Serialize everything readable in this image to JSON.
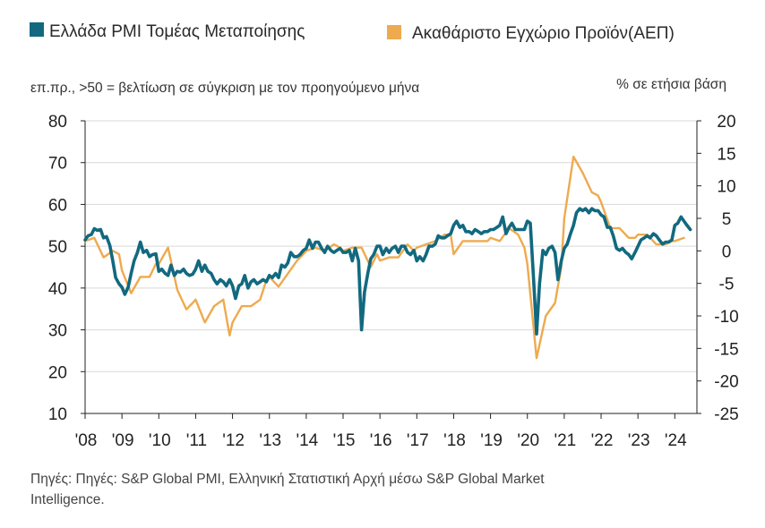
{
  "legend": {
    "pmi_label": "Ελλάδα PMI Τομέας Μεταποίησης",
    "gdp_label": "Ακαθάριστο Εγχώριο Προϊόν(ΑΕΠ)"
  },
  "subtitle_left": "επ.πρ., >50 = βελτίωση σε σύγκριση με τον προηγούμενο μήνα",
  "subtitle_right": "% σε ετήσια βάση",
  "source_line1": "Πηγές: Πηγές: S&P Global PMI, Ελληνική Στατιστική Αρχή μέσω S&P Global Market",
  "source_line2": "Intelligence.",
  "colors": {
    "pmi": "#12697f",
    "gdp": "#eeaa4e",
    "grid": "#d9d9d9",
    "axis": "#222222"
  },
  "chart_data": {
    "type": "line",
    "x_tick_labels": [
      "'08",
      "'09",
      "'10",
      "'11",
      "'12",
      "'13",
      "'14",
      "'15",
      "'16",
      "'17",
      "'18",
      "'19",
      "'20",
      "'21",
      "'22",
      "'23",
      "'24"
    ],
    "x_range": [
      2008.0,
      2024.6
    ],
    "left_axis": {
      "ylim": [
        10,
        80
      ],
      "ticks": [
        "80",
        "70",
        "60",
        "50",
        "40",
        "30",
        "20",
        "10"
      ]
    },
    "right_axis": {
      "ylim": [
        -25,
        20
      ],
      "ticks": [
        "20",
        "15",
        "10",
        "5",
        "0",
        "-5",
        "-10",
        "-15",
        "-20",
        "-25"
      ]
    },
    "grid": "horizontal",
    "legend_position": "top",
    "series": [
      {
        "name": "Ελλάδα PMI Τομέας Μεταποίησης",
        "axis": "left",
        "color": "#12697f",
        "points": [
          [
            2008.0,
            51.5
          ],
          [
            2008.08,
            52.5
          ],
          [
            2008.17,
            52.8
          ],
          [
            2008.25,
            54.2
          ],
          [
            2008.33,
            53.8
          ],
          [
            2008.42,
            54.0
          ],
          [
            2008.5,
            52.0
          ],
          [
            2008.58,
            52.3
          ],
          [
            2008.67,
            50.2
          ],
          [
            2008.75,
            46.5
          ],
          [
            2008.83,
            42.5
          ],
          [
            2008.92,
            41.0
          ],
          [
            2009.0,
            40.2
          ],
          [
            2009.08,
            38.5
          ],
          [
            2009.17,
            40.2
          ],
          [
            2009.25,
            43.5
          ],
          [
            2009.33,
            46.5
          ],
          [
            2009.42,
            48.5
          ],
          [
            2009.5,
            51.0
          ],
          [
            2009.58,
            48.5
          ],
          [
            2009.67,
            49.0
          ],
          [
            2009.75,
            47.5
          ],
          [
            2009.83,
            48.0
          ],
          [
            2009.92,
            48.2
          ],
          [
            2010.0,
            44.0
          ],
          [
            2010.08,
            44.5
          ],
          [
            2010.17,
            43.5
          ],
          [
            2010.25,
            43.0
          ],
          [
            2010.33,
            45.5
          ],
          [
            2010.42,
            43.0
          ],
          [
            2010.5,
            44.0
          ],
          [
            2010.58,
            43.8
          ],
          [
            2010.67,
            44.5
          ],
          [
            2010.75,
            43.5
          ],
          [
            2010.83,
            43.0
          ],
          [
            2010.92,
            43.3
          ],
          [
            2011.0,
            44.5
          ],
          [
            2011.08,
            46.5
          ],
          [
            2011.17,
            44.0
          ],
          [
            2011.25,
            45.5
          ],
          [
            2011.33,
            44.0
          ],
          [
            2011.42,
            43.5
          ],
          [
            2011.5,
            42.0
          ],
          [
            2011.58,
            41.0
          ],
          [
            2011.67,
            42.0
          ],
          [
            2011.75,
            41.5
          ],
          [
            2011.83,
            40.5
          ],
          [
            2011.92,
            42.0
          ],
          [
            2012.0,
            40.5
          ],
          [
            2012.08,
            37.5
          ],
          [
            2012.17,
            40.5
          ],
          [
            2012.25,
            41.0
          ],
          [
            2012.33,
            43.0
          ],
          [
            2012.42,
            40.0
          ],
          [
            2012.5,
            41.5
          ],
          [
            2012.58,
            42.0
          ],
          [
            2012.67,
            41.0
          ],
          [
            2012.75,
            41.5
          ],
          [
            2012.83,
            42.0
          ],
          [
            2012.92,
            41.5
          ],
          [
            2013.0,
            43.0
          ],
          [
            2013.08,
            42.5
          ],
          [
            2013.17,
            43.5
          ],
          [
            2013.25,
            42.5
          ],
          [
            2013.33,
            45.5
          ],
          [
            2013.42,
            45.0
          ],
          [
            2013.5,
            46.0
          ],
          [
            2013.58,
            48.5
          ],
          [
            2013.67,
            47.5
          ],
          [
            2013.75,
            47.5
          ],
          [
            2013.83,
            48.0
          ],
          [
            2013.92,
            49.0
          ],
          [
            2014.0,
            49.5
          ],
          [
            2014.08,
            51.5
          ],
          [
            2014.17,
            49.5
          ],
          [
            2014.25,
            51.0
          ],
          [
            2014.33,
            51.0
          ],
          [
            2014.42,
            49.5
          ],
          [
            2014.5,
            48.5
          ],
          [
            2014.58,
            50.0
          ],
          [
            2014.67,
            49.0
          ],
          [
            2014.75,
            48.5
          ],
          [
            2014.83,
            49.0
          ],
          [
            2014.92,
            49.5
          ],
          [
            2015.0,
            48.5
          ],
          [
            2015.08,
            48.5
          ],
          [
            2015.17,
            49.0
          ],
          [
            2015.25,
            46.5
          ],
          [
            2015.33,
            49.5
          ],
          [
            2015.42,
            46.5
          ],
          [
            2015.5,
            30.0
          ],
          [
            2015.58,
            39.0
          ],
          [
            2015.67,
            43.5
          ],
          [
            2015.75,
            47.0
          ],
          [
            2015.83,
            48.0
          ],
          [
            2015.92,
            50.0
          ],
          [
            2016.0,
            50.0
          ],
          [
            2016.08,
            48.0
          ],
          [
            2016.17,
            49.5
          ],
          [
            2016.25,
            48.5
          ],
          [
            2016.33,
            49.5
          ],
          [
            2016.42,
            50.0
          ],
          [
            2016.5,
            48.5
          ],
          [
            2016.58,
            50.0
          ],
          [
            2016.67,
            50.0
          ],
          [
            2016.75,
            48.5
          ],
          [
            2016.83,
            48.0
          ],
          [
            2016.92,
            49.0
          ],
          [
            2017.0,
            46.5
          ],
          [
            2017.08,
            47.5
          ],
          [
            2017.17,
            46.5
          ],
          [
            2017.25,
            48.0
          ],
          [
            2017.33,
            50.0
          ],
          [
            2017.42,
            50.0
          ],
          [
            2017.5,
            50.5
          ],
          [
            2017.58,
            52.5
          ],
          [
            2017.67,
            52.0
          ],
          [
            2017.75,
            52.0
          ],
          [
            2017.83,
            52.5
          ],
          [
            2017.92,
            53.0
          ],
          [
            2018.0,
            55.0
          ],
          [
            2018.08,
            56.0
          ],
          [
            2018.17,
            54.5
          ],
          [
            2018.25,
            55.0
          ],
          [
            2018.33,
            53.5
          ],
          [
            2018.42,
            53.5
          ],
          [
            2018.5,
            53.0
          ],
          [
            2018.58,
            54.0
          ],
          [
            2018.67,
            53.5
          ],
          [
            2018.75,
            53.0
          ],
          [
            2018.83,
            53.5
          ],
          [
            2018.92,
            53.5
          ],
          [
            2019.0,
            54.0
          ],
          [
            2019.08,
            54.0
          ],
          [
            2019.17,
            54.5
          ],
          [
            2019.25,
            55.0
          ],
          [
            2019.33,
            57.0
          ],
          [
            2019.42,
            53.0
          ],
          [
            2019.5,
            54.5
          ],
          [
            2019.58,
            55.5
          ],
          [
            2019.67,
            54.0
          ],
          [
            2019.75,
            54.0
          ],
          [
            2019.83,
            54.0
          ],
          [
            2019.92,
            54.0
          ],
          [
            2020.0,
            56.0
          ],
          [
            2020.08,
            55.5
          ],
          [
            2020.17,
            42.0
          ],
          [
            2020.25,
            29.0
          ],
          [
            2020.33,
            41.0
          ],
          [
            2020.42,
            49.0
          ],
          [
            2020.5,
            48.0
          ],
          [
            2020.58,
            49.5
          ],
          [
            2020.67,
            50.0
          ],
          [
            2020.75,
            48.5
          ],
          [
            2020.83,
            42.0
          ],
          [
            2020.92,
            46.5
          ],
          [
            2021.0,
            49.5
          ],
          [
            2021.08,
            50.5
          ],
          [
            2021.17,
            53.0
          ],
          [
            2021.25,
            55.0
          ],
          [
            2021.33,
            58.0
          ],
          [
            2021.42,
            59.0
          ],
          [
            2021.5,
            58.5
          ],
          [
            2021.58,
            59.0
          ],
          [
            2021.67,
            58.0
          ],
          [
            2021.75,
            59.0
          ],
          [
            2021.83,
            58.5
          ],
          [
            2021.92,
            58.5
          ],
          [
            2022.0,
            57.5
          ],
          [
            2022.08,
            57.0
          ],
          [
            2022.17,
            54.5
          ],
          [
            2022.25,
            54.5
          ],
          [
            2022.33,
            52.5
          ],
          [
            2022.42,
            49.5
          ],
          [
            2022.5,
            49.0
          ],
          [
            2022.58,
            49.5
          ],
          [
            2022.67,
            48.5
          ],
          [
            2022.75,
            48.0
          ],
          [
            2022.83,
            47.0
          ],
          [
            2022.92,
            48.5
          ],
          [
            2023.0,
            50.0
          ],
          [
            2023.08,
            51.5
          ],
          [
            2023.17,
            52.0
          ],
          [
            2023.25,
            52.5
          ],
          [
            2023.33,
            52.0
          ],
          [
            2023.42,
            53.0
          ],
          [
            2023.5,
            52.5
          ],
          [
            2023.58,
            51.5
          ],
          [
            2023.67,
            50.5
          ],
          [
            2023.75,
            51.0
          ],
          [
            2023.83,
            51.0
          ],
          [
            2023.92,
            51.5
          ],
          [
            2024.0,
            55.0
          ],
          [
            2024.08,
            55.5
          ],
          [
            2024.17,
            57.0
          ],
          [
            2024.25,
            56.0
          ],
          [
            2024.33,
            55.0
          ],
          [
            2024.42,
            54.0
          ]
        ]
      },
      {
        "name": "Ακαθάριστο Εγχώριο Προϊόν(ΑΕΠ)",
        "axis": "right",
        "color": "#eeaa4e",
        "points": [
          [
            2008.0,
            1.5
          ],
          [
            2008.25,
            2.0
          ],
          [
            2008.5,
            -1.0
          ],
          [
            2008.75,
            0.0
          ],
          [
            2008.92,
            -0.5
          ],
          [
            2009.0,
            -3.0
          ],
          [
            2009.25,
            -6.5
          ],
          [
            2009.5,
            -4.0
          ],
          [
            2009.75,
            -4.0
          ],
          [
            2009.92,
            -2.0
          ],
          [
            2010.0,
            -2.0
          ],
          [
            2010.25,
            0.5
          ],
          [
            2010.5,
            -6.0
          ],
          [
            2010.75,
            -9.0
          ],
          [
            2010.92,
            -8.0
          ],
          [
            2011.0,
            -7.5
          ],
          [
            2011.25,
            -11.0
          ],
          [
            2011.5,
            -8.5
          ],
          [
            2011.75,
            -7.5
          ],
          [
            2011.92,
            -13.0
          ],
          [
            2012.0,
            -11.0
          ],
          [
            2012.25,
            -8.5
          ],
          [
            2012.5,
            -8.5
          ],
          [
            2012.75,
            -7.5
          ],
          [
            2012.92,
            -4.5
          ],
          [
            2013.0,
            -4.0
          ],
          [
            2013.25,
            -5.5
          ],
          [
            2013.5,
            -3.5
          ],
          [
            2013.75,
            -1.5
          ],
          [
            2013.92,
            -0.5
          ],
          [
            2014.0,
            0.0
          ],
          [
            2014.25,
            0.5
          ],
          [
            2014.5,
            0.0
          ],
          [
            2014.75,
            1.0
          ],
          [
            2014.92,
            0.5
          ],
          [
            2015.0,
            0.0
          ],
          [
            2015.25,
            0.5
          ],
          [
            2015.5,
            0.5
          ],
          [
            2015.75,
            -2.5
          ],
          [
            2015.92,
            -0.5
          ],
          [
            2016.0,
            -1.5
          ],
          [
            2016.25,
            -1.0
          ],
          [
            2016.5,
            -1.0
          ],
          [
            2016.75,
            1.0
          ],
          [
            2016.92,
            0.0
          ],
          [
            2017.0,
            0.5
          ],
          [
            2017.25,
            1.0
          ],
          [
            2017.5,
            1.5
          ],
          [
            2017.75,
            2.5
          ],
          [
            2017.92,
            2.5
          ],
          [
            2018.0,
            -0.5
          ],
          [
            2018.25,
            1.5
          ],
          [
            2018.5,
            1.5
          ],
          [
            2018.75,
            1.5
          ],
          [
            2018.92,
            1.5
          ],
          [
            2019.0,
            2.0
          ],
          [
            2019.25,
            1.5
          ],
          [
            2019.5,
            3.5
          ],
          [
            2019.75,
            2.5
          ],
          [
            2019.92,
            0.5
          ],
          [
            2020.0,
            -2.0
          ],
          [
            2020.25,
            -16.5
          ],
          [
            2020.5,
            -10.0
          ],
          [
            2020.75,
            -8.0
          ],
          [
            2020.92,
            -2.5
          ],
          [
            2021.0,
            5.0
          ],
          [
            2021.25,
            14.5
          ],
          [
            2021.5,
            12.0
          ],
          [
            2021.75,
            9.0
          ],
          [
            2021.92,
            8.5
          ],
          [
            2022.0,
            7.5
          ],
          [
            2022.25,
            3.5
          ],
          [
            2022.5,
            3.5
          ],
          [
            2022.75,
            2.0
          ],
          [
            2022.92,
            2.0
          ],
          [
            2023.0,
            2.5
          ],
          [
            2023.25,
            2.5
          ],
          [
            2023.5,
            1.0
          ],
          [
            2023.75,
            1.0
          ],
          [
            2023.92,
            1.5
          ],
          [
            2024.0,
            1.5
          ],
          [
            2024.25,
            2.0
          ]
        ]
      }
    ]
  }
}
